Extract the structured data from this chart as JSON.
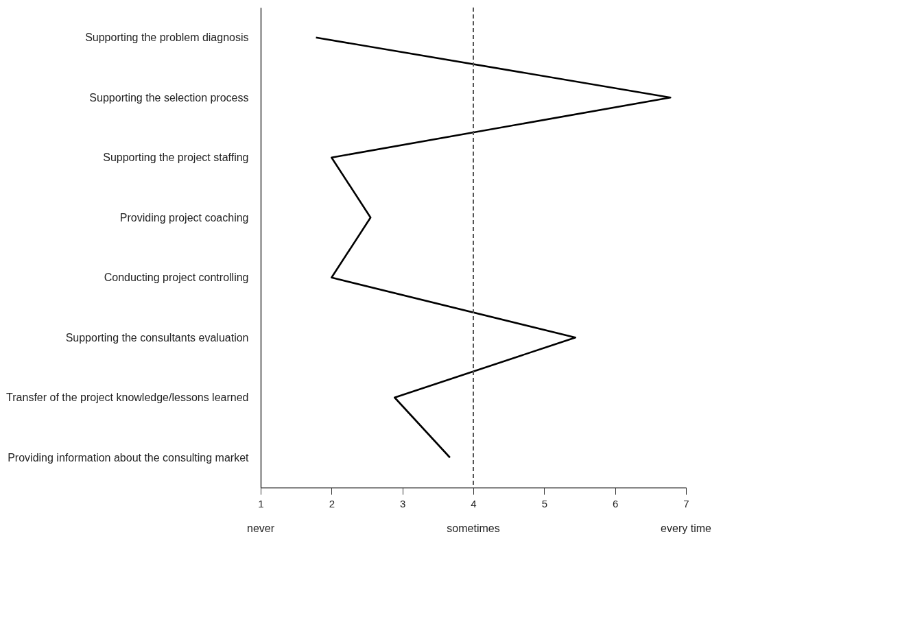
{
  "chart_data": {
    "type": "line",
    "orientation": "horizontal",
    "categories": [
      "Supporting the problem diagnosis",
      "Supporting the selection process",
      "Supporting the project staffing",
      "Providing project coaching",
      "Conducting project controlling",
      "Supporting the consultants evaluation",
      "Transfer of the project knowledge/lessons learned",
      "Providing information about the consulting market"
    ],
    "values": [
      1.78,
      6.78,
      2.0,
      2.55,
      2.0,
      5.44,
      2.89,
      3.67
    ],
    "color": "#000000",
    "xlim": [
      1,
      7
    ],
    "xticks": [
      1,
      2,
      3,
      4,
      5,
      6,
      7
    ],
    "ref_lines": [
      {
        "axis": "x",
        "value": 4,
        "line_style": "dashed",
        "color": "#555555"
      }
    ],
    "annotations": [
      "never",
      "sometimes",
      "every time"
    ]
  }
}
